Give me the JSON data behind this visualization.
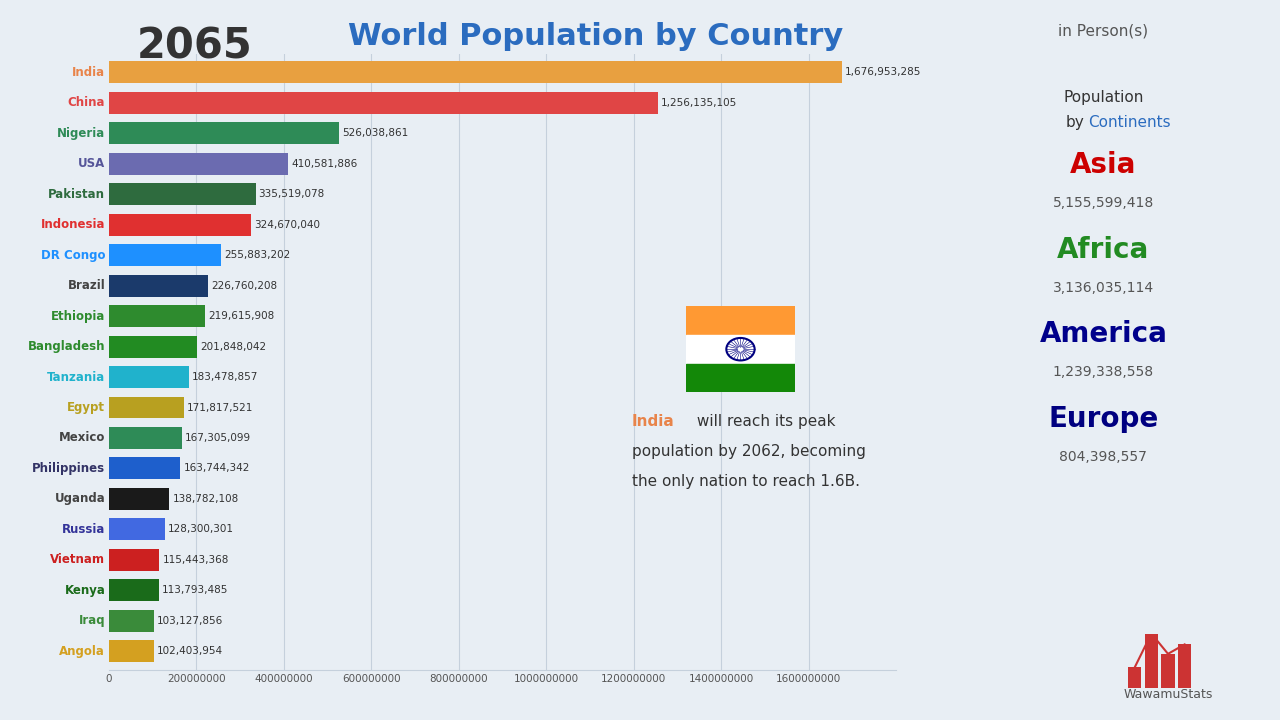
{
  "year": "2065",
  "title": "World Population by Country",
  "subtitle": "in Person(s)",
  "countries": [
    "India",
    "China",
    "Nigeria",
    "USA",
    "Pakistan",
    "Indonesia",
    "DR Congo",
    "Brazil",
    "Ethiopia",
    "Bangladesh",
    "Tanzania",
    "Egypt",
    "Mexico",
    "Philippines",
    "Uganda",
    "Russia",
    "Vietnam",
    "Kenya",
    "Iraq",
    "Angola"
  ],
  "values": [
    1676953285,
    1256135105,
    526038861,
    410581886,
    335519078,
    324670040,
    255883202,
    226760208,
    219615908,
    201848042,
    183478857,
    171817521,
    167305099,
    163744342,
    138782108,
    128300301,
    115443368,
    113793485,
    103127856,
    102403954
  ],
  "bar_colors": [
    "#E8A040",
    "#E04545",
    "#2E8B57",
    "#6B6BB0",
    "#2E6B3E",
    "#E03030",
    "#1E90FF",
    "#1B3A6B",
    "#2E8B2E",
    "#228B22",
    "#20B2CC",
    "#B8A020",
    "#2E8B57",
    "#1E5FCC",
    "#1A1A1A",
    "#4169E1",
    "#CC2020",
    "#1A6B1A",
    "#3A8B3A",
    "#D4A020"
  ],
  "label_colors": [
    "#E8844A",
    "#E04545",
    "#2E8B57",
    "#555599",
    "#2E6B3E",
    "#E03030",
    "#1E90FF",
    "#444444",
    "#2E8B2E",
    "#2E8B2E",
    "#20B2CC",
    "#B8A020",
    "#444444",
    "#333366",
    "#444444",
    "#333399",
    "#CC2020",
    "#1A6B1A",
    "#3A8B3A",
    "#D4A020"
  ],
  "bg_color": "#E8EEF4",
  "grid_color": "#C5D0DC",
  "xmax": 1800000000,
  "continent_names": [
    "Asia",
    "Africa",
    "America",
    "Europe"
  ],
  "continent_colors": [
    "#CC0000",
    "#228B22",
    "#00008B",
    "#000080"
  ],
  "continent_values": [
    "5,155,599,418",
    "3,136,035,114",
    "1,239,338,558",
    "804,398,557"
  ]
}
